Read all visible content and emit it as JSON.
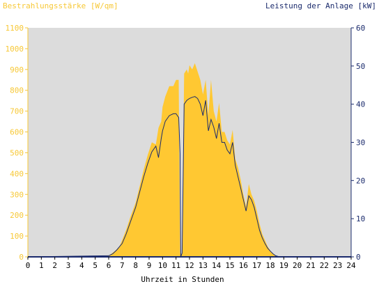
{
  "chart_data": {
    "type": "area",
    "left_axis_title": "Bestrahlungsstärke [W/qm]",
    "right_axis_title": "Leistung der Anlage [kW]",
    "xlabel": "Uhrzeit in Stunden",
    "xlim": [
      0,
      24
    ],
    "xticks": [
      "0",
      "1",
      "2",
      "3",
      "4",
      "5",
      "6",
      "7",
      "8",
      "9",
      "10",
      "11",
      "12",
      "13",
      "14",
      "15",
      "16",
      "17",
      "18",
      "19",
      "20",
      "21",
      "22",
      "23",
      "24"
    ],
    "ylim_left": [
      0,
      1100
    ],
    "yticks_left": [
      "0",
      "100",
      "200",
      "300",
      "400",
      "500",
      "600",
      "700",
      "800",
      "900",
      "1000",
      "1100"
    ],
    "ylim_right": [
      0,
      60
    ],
    "yticks_right": [
      "0",
      "10",
      "20",
      "30",
      "40",
      "50",
      "60"
    ],
    "grid": false,
    "colors": {
      "irradiance": "#ffc832",
      "power": "#1a2a6c",
      "plot_bg": "#dcdcdc",
      "left_axis": "#f7c836",
      "right_axis": "#1a2a6c"
    },
    "series": [
      {
        "name": "Bestrahlungsstärke [W/qm]",
        "axis": "left",
        "x": [
          0,
          6.0,
          6.2,
          6.5,
          6.8,
          7.0,
          7.3,
          7.6,
          8.0,
          8.3,
          8.6,
          8.9,
          9.2,
          9.5,
          9.7,
          9.9,
          10.0,
          10.2,
          10.5,
          10.8,
          11.0,
          11.2,
          11.3,
          11.35,
          11.45,
          11.6,
          11.8,
          11.9,
          12.0,
          12.2,
          12.4,
          12.6,
          12.8,
          13.0,
          13.2,
          13.4,
          13.6,
          13.8,
          14.0,
          14.2,
          14.4,
          14.6,
          14.8,
          15.0,
          15.2,
          15.4,
          15.6,
          15.8,
          16.0,
          16.2,
          16.4,
          16.6,
          16.8,
          17.0,
          17.2,
          17.4,
          17.6,
          17.8,
          18.0,
          18.2,
          18.4,
          18.6,
          18.8,
          19.0,
          19.1,
          24
        ],
        "values": [
          0,
          5,
          15,
          30,
          50,
          80,
          130,
          190,
          260,
          340,
          420,
          490,
          550,
          540,
          620,
          650,
          720,
          770,
          820,
          820,
          850,
          850,
          20,
          10,
          20,
          880,
          900,
          880,
          920,
          900,
          930,
          890,
          850,
          780,
          850,
          680,
          850,
          700,
          650,
          740,
          600,
          600,
          560,
          540,
          610,
          470,
          430,
          370,
          300,
          240,
          350,
          300,
          270,
          220,
          160,
          110,
          80,
          50,
          30,
          15,
          5,
          2,
          0,
          0,
          0,
          0
        ]
      },
      {
        "name": "Leistung der Anlage [kW]",
        "axis": "right",
        "x": [
          0,
          6.0,
          6.3,
          6.6,
          7.0,
          7.3,
          7.6,
          8.0,
          8.3,
          8.6,
          8.9,
          9.2,
          9.5,
          9.7,
          9.9,
          10.0,
          10.2,
          10.5,
          10.8,
          11.0,
          11.2,
          11.3,
          11.35,
          11.45,
          11.6,
          11.8,
          12.0,
          12.2,
          12.4,
          12.6,
          12.8,
          13.0,
          13.2,
          13.4,
          13.6,
          13.8,
          14.0,
          14.2,
          14.4,
          14.6,
          14.8,
          15.0,
          15.2,
          15.4,
          15.6,
          15.8,
          16.0,
          16.2,
          16.4,
          16.6,
          16.8,
          17.0,
          17.2,
          17.4,
          17.6,
          17.8,
          18.0,
          18.2,
          18.4,
          18.6,
          18.8,
          19.0,
          19.1,
          24
        ],
        "values": [
          0,
          0.3,
          0.8,
          1.8,
          3.5,
          6,
          9,
          13,
          17,
          21,
          24.5,
          27.5,
          29,
          26,
          31,
          33,
          35.5,
          37,
          37.5,
          37.5,
          36.5,
          27,
          0,
          1,
          40,
          41,
          41.5,
          41.8,
          42,
          41.5,
          40,
          37,
          41,
          33,
          36,
          34,
          31,
          35,
          30,
          30,
          28,
          27,
          30,
          24,
          21,
          18,
          15,
          12,
          16,
          15,
          13,
          10,
          7,
          5,
          3.5,
          2.3,
          1.5,
          0.8,
          0.3,
          0.1,
          0,
          0,
          0,
          0
        ]
      }
    ]
  }
}
